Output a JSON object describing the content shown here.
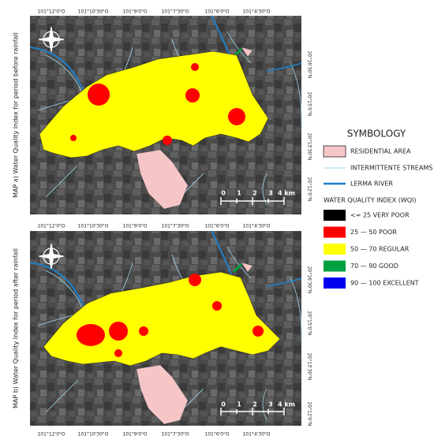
{
  "maps": [
    {
      "title": "MAP a) Water Quality Index for period before rainfall",
      "top_labels": [
        "101°12'0\"O",
        "101°10'30\"O",
        "101°9'0\"O",
        "101°7'30\"O",
        "101°6'0\"O",
        "101°4'30\"O"
      ],
      "right_labels": [
        "20°16'30\"N",
        "20°15'0\"N",
        "20°13'30\"N",
        "20°12'0\"N"
      ],
      "scale": [
        "0",
        "1",
        "2",
        "3",
        "4 km"
      ]
    },
    {
      "title": "MAP b) Water Quality Index for period after rainfall",
      "top_labels": [
        "101°12'0\"O",
        "101°10'30\"O",
        "101°9'0\"O",
        "101°7'30\"O",
        "101°6'0\"O",
        "101°4'30\"O"
      ],
      "right_labels": [
        "20°16'30\"N",
        "20°15'0\"N",
        "20°13'30\"N",
        "20°12'0\"N"
      ],
      "bottom_labels": [
        "101°12'0\"O",
        "101°10'30\"O",
        "101°9'0\"O",
        "101°7'30\"O",
        "101°6'0\"O",
        "101°4'30\"O"
      ],
      "scale": [
        "0",
        "1",
        "2",
        "3",
        "4 km"
      ]
    }
  ],
  "legend": {
    "title": "SYMBOLOGY",
    "items": [
      "RESIDENTIAL AREA",
      "INTERMITTENTE STREAMS",
      "LERMA RIVER"
    ],
    "wqi_title": "WATER QUALITY INDEX (WQI)",
    "classes": [
      {
        "label": "<= 25 VERY POOR",
        "color": "#000000"
      },
      {
        "label": "25 — 50 POOR",
        "color": "#ff0000"
      },
      {
        "label": "50 — 70 REGULAR",
        "color": "#ffff00"
      },
      {
        "label": "70 — 90 GOOD",
        "color": "#00a040"
      },
      {
        "label": "90 — 100 EXCELLENT",
        "color": "#0000ee"
      }
    ]
  }
}
